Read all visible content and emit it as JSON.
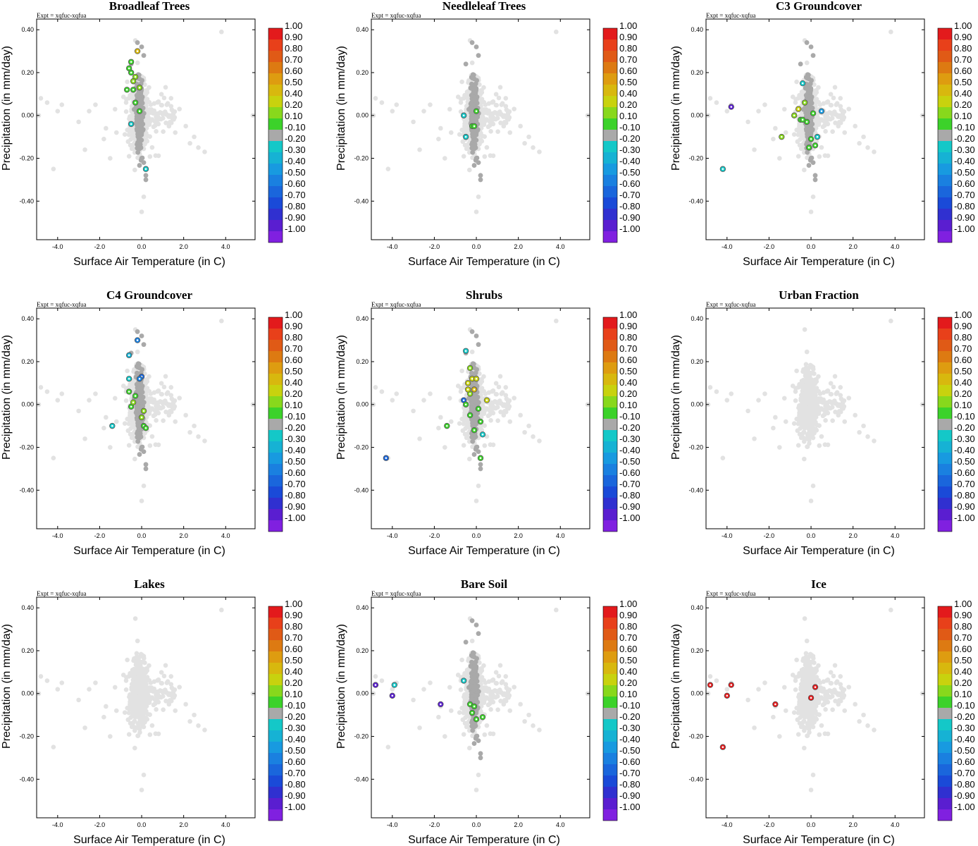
{
  "chart_data": {
    "type": "scatter",
    "experiment_label": "Expt = xqfuc-xqfua",
    "xlabel": "Surface Air Temperature (in C)",
    "ylabel": "Precipitation (in mm/day)",
    "xlim": [
      -5.0,
      5.4
    ],
    "ylim": [
      -0.58,
      0.45
    ],
    "xticks": [
      -4.0,
      -2.0,
      0.0,
      2.0,
      4.0
    ],
    "xtick_labels": [
      "-4.0",
      "-2.0",
      "0.0",
      "2.0",
      "4.0"
    ],
    "yticks": [
      0.4,
      0.2,
      0.0,
      -0.2,
      -0.4
    ],
    "ytick_labels": [
      "0.40",
      "0.20",
      "0.00",
      "-0.20",
      "-0.40"
    ],
    "colorbar": {
      "labels": [
        "1.00",
        "0.90",
        "0.80",
        "0.70",
        "0.60",
        "0.50",
        "0.40",
        "0.20",
        "0.10",
        "-0.10",
        "-0.20",
        "-0.30",
        "-0.40",
        "-0.50",
        "-0.60",
        "-0.70",
        "-0.80",
        "-0.90",
        "-1.00"
      ],
      "colors": [
        "#e31a1c",
        "#e8401a",
        "#e05a16",
        "#dd7a12",
        "#de9c10",
        "#d8b80e",
        "#c8d20e",
        "#88d81c",
        "#3cd22a",
        "#a9a9a9",
        "#14c8c8",
        "#16b2d4",
        "#189ae0",
        "#1a80e0",
        "#1a66dc",
        "#1a4ad8",
        "#3030d0",
        "#5a1ed0",
        "#8020e0"
      ]
    },
    "panels": [
      {
        "title": "Broadleaf Trees",
        "points": [
          {
            "x": -0.5,
            "y": 0.2,
            "c": 0.1
          },
          {
            "x": -0.3,
            "y": 0.18,
            "c": 0.2
          },
          {
            "x": -0.6,
            "y": 0.22,
            "c": 0.1
          },
          {
            "x": -0.2,
            "y": 0.3,
            "c": 0.5
          },
          {
            "x": -0.4,
            "y": 0.12,
            "c": 0.1
          },
          {
            "x": -0.1,
            "y": 0.13,
            "c": 0.2
          },
          {
            "x": -0.7,
            "y": 0.12,
            "c": 0.1
          },
          {
            "x": -0.3,
            "y": 0.06,
            "c": 0.1
          },
          {
            "x": -0.1,
            "y": 0.02,
            "c": 0.1
          },
          {
            "x": -0.4,
            "y": 0.16,
            "c": 0.2
          },
          {
            "x": -0.5,
            "y": 0.25,
            "c": 0.1
          },
          {
            "x": 0.2,
            "y": -0.25,
            "c": -0.2
          },
          {
            "x": -0.5,
            "y": -0.04,
            "c": -0.2
          }
        ]
      },
      {
        "title": "Needleleaf Trees",
        "points": [
          {
            "x": 0.0,
            "y": 0.02,
            "c": 0.1
          },
          {
            "x": -0.2,
            "y": -0.05,
            "c": 0.1
          },
          {
            "x": -0.1,
            "y": -0.05,
            "c": 0.1
          },
          {
            "x": -0.6,
            "y": 0.0,
            "c": -0.2
          },
          {
            "x": -0.5,
            "y": -0.1,
            "c": -0.2
          }
        ]
      },
      {
        "title": "C3 Groundcover",
        "points": [
          {
            "x": -3.8,
            "y": 0.04,
            "c": -0.9
          },
          {
            "x": -4.2,
            "y": -0.25,
            "c": -0.2
          },
          {
            "x": -1.4,
            "y": -0.1,
            "c": 0.2
          },
          {
            "x": -0.8,
            "y": 0.0,
            "c": 0.2
          },
          {
            "x": -0.6,
            "y": 0.03,
            "c": 0.4
          },
          {
            "x": -0.5,
            "y": -0.02,
            "c": 0.1
          },
          {
            "x": -0.3,
            "y": 0.06,
            "c": 0.2
          },
          {
            "x": -0.2,
            "y": -0.03,
            "c": 0.1
          },
          {
            "x": 0.1,
            "y": 0.01,
            "c": 0.1
          },
          {
            "x": 0.0,
            "y": -0.11,
            "c": 0.1
          },
          {
            "x": 0.2,
            "y": -0.14,
            "c": 0.1
          },
          {
            "x": -0.1,
            "y": -0.15,
            "c": 0.1
          },
          {
            "x": 0.3,
            "y": -0.1,
            "c": -0.2
          },
          {
            "x": 0.5,
            "y": 0.02,
            "c": -0.4
          },
          {
            "x": -0.4,
            "y": 0.15,
            "c": -0.2
          },
          {
            "x": -0.4,
            "y": -0.02,
            "c": 0.1
          }
        ]
      },
      {
        "title": "C4 Groundcover",
        "points": [
          {
            "x": -0.2,
            "y": 0.3,
            "c": -0.5
          },
          {
            "x": -0.6,
            "y": 0.23,
            "c": -0.3
          },
          {
            "x": -0.6,
            "y": 0.12,
            "c": -0.2
          },
          {
            "x": 0.0,
            "y": 0.13,
            "c": -0.6
          },
          {
            "x": -0.1,
            "y": 0.12,
            "c": -0.5
          },
          {
            "x": -0.6,
            "y": 0.06,
            "c": 0.1
          },
          {
            "x": -0.3,
            "y": 0.04,
            "c": 0.1
          },
          {
            "x": -0.5,
            "y": -0.01,
            "c": 0.1
          },
          {
            "x": 0.1,
            "y": -0.03,
            "c": 0.2
          },
          {
            "x": 0.0,
            "y": -0.06,
            "c": 0.2
          },
          {
            "x": 0.1,
            "y": -0.1,
            "c": 0.1
          },
          {
            "x": 0.2,
            "y": -0.11,
            "c": 0.1
          },
          {
            "x": -1.4,
            "y": -0.1,
            "c": -0.2
          },
          {
            "x": -0.4,
            "y": 0.01,
            "c": 0.2
          }
        ]
      },
      {
        "title": "Shrubs",
        "points": [
          {
            "x": -4.3,
            "y": -0.25,
            "c": -0.6
          },
          {
            "x": -0.5,
            "y": 0.25,
            "c": -0.2
          },
          {
            "x": -0.3,
            "y": 0.17,
            "c": 0.3
          },
          {
            "x": -0.2,
            "y": 0.12,
            "c": 0.4
          },
          {
            "x": -0.4,
            "y": 0.1,
            "c": 0.4
          },
          {
            "x": 0.0,
            "y": 0.12,
            "c": 0.4
          },
          {
            "x": -0.1,
            "y": 0.07,
            "c": 0.5
          },
          {
            "x": -0.3,
            "y": 0.05,
            "c": 0.2
          },
          {
            "x": 0.5,
            "y": 0.02,
            "c": 0.4
          },
          {
            "x": -0.6,
            "y": 0.02,
            "c": -0.6
          },
          {
            "x": -0.5,
            "y": 0.0,
            "c": 0.1
          },
          {
            "x": 0.1,
            "y": -0.02,
            "c": 0.1
          },
          {
            "x": -0.3,
            "y": -0.05,
            "c": 0.1
          },
          {
            "x": 0.2,
            "y": -0.08,
            "c": 0.1
          },
          {
            "x": -0.1,
            "y": -0.12,
            "c": 0.1
          },
          {
            "x": -1.4,
            "y": -0.1,
            "c": 0.1
          },
          {
            "x": 0.2,
            "y": -0.25,
            "c": 0.1
          },
          {
            "x": 0.3,
            "y": -0.14,
            "c": -0.2
          },
          {
            "x": -0.4,
            "y": 0.07,
            "c": 0.4
          }
        ]
      },
      {
        "title": "Urban Fraction",
        "points": []
      },
      {
        "title": "Lakes",
        "points": []
      },
      {
        "title": "Bare Soil",
        "points": [
          {
            "x": -4.8,
            "y": 0.04,
            "c": -0.9
          },
          {
            "x": -3.9,
            "y": 0.04,
            "c": -0.2
          },
          {
            "x": -4.0,
            "y": -0.01,
            "c": -0.9
          },
          {
            "x": -1.7,
            "y": -0.05,
            "c": -0.9
          },
          {
            "x": -0.6,
            "y": 0.06,
            "c": -0.2
          },
          {
            "x": -0.3,
            "y": -0.05,
            "c": 0.1
          },
          {
            "x": -0.1,
            "y": -0.06,
            "c": 0.1
          },
          {
            "x": -0.2,
            "y": -0.09,
            "c": 0.1
          },
          {
            "x": 0.0,
            "y": -0.12,
            "c": 0.1
          },
          {
            "x": 0.3,
            "y": -0.11,
            "c": 0.1
          }
        ]
      },
      {
        "title": "Ice",
        "points": [
          {
            "x": -4.8,
            "y": 0.04,
            "c": 1.0
          },
          {
            "x": -3.8,
            "y": 0.04,
            "c": 1.0
          },
          {
            "x": -4.0,
            "y": -0.01,
            "c": 1.0
          },
          {
            "x": -4.2,
            "y": -0.25,
            "c": 1.0
          },
          {
            "x": -1.7,
            "y": -0.05,
            "c": 1.0
          },
          {
            "x": 0.2,
            "y": 0.03,
            "c": 1.0
          },
          {
            "x": 0.0,
            "y": -0.02,
            "c": 1.0
          }
        ]
      }
    ],
    "background_cloud_color": "#e2e2e2",
    "near_zero_color": "#a9a9a9"
  }
}
